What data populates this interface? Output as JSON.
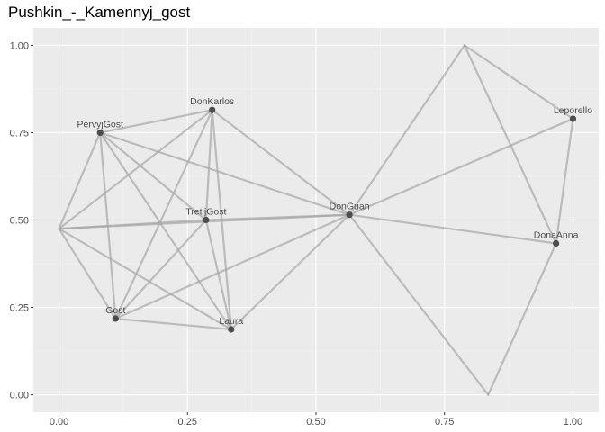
{
  "chart_data": {
    "type": "scatter",
    "title": "Pushkin_-_Kamennyj_gost",
    "xlabel": "",
    "ylabel": "",
    "xlim": [
      -0.05,
      1.05
    ],
    "ylim": [
      -0.05,
      1.05
    ],
    "x_ticks": [
      "0.00",
      "0.25",
      "0.50",
      "0.75",
      "1.00"
    ],
    "y_ticks": [
      "0.00",
      "0.25",
      "0.50",
      "0.75",
      "1.00"
    ],
    "x_tick_values": [
      0,
      0.25,
      0.5,
      0.75,
      1
    ],
    "y_tick_values": [
      0,
      0.25,
      0.5,
      0.75,
      1
    ],
    "grid": true,
    "nodes": [
      {
        "id": "PervyjGost",
        "x": 0.08,
        "y": 0.75,
        "label": "PervyjGost"
      },
      {
        "id": "DonKarlos",
        "x": 0.298,
        "y": 0.815,
        "label": "DonKarlos"
      },
      {
        "id": "TretijGost",
        "x": 0.286,
        "y": 0.5,
        "label": "TretijGost"
      },
      {
        "id": "DonGuan",
        "x": 0.565,
        "y": 0.515,
        "label": "DonGuan"
      },
      {
        "id": "Leporello",
        "x": 1.0,
        "y": 0.79,
        "label": "Leporello"
      },
      {
        "id": "DonaAnna",
        "x": 0.967,
        "y": 0.433,
        "label": "DonaAnna"
      },
      {
        "id": "Gost",
        "x": 0.11,
        "y": 0.218,
        "label": "Gost"
      },
      {
        "id": "Laura",
        "x": 0.335,
        "y": 0.187,
        "label": "Laura"
      },
      {
        "id": "h1",
        "x": 0.0,
        "y": 0.475,
        "label": ""
      },
      {
        "id": "h2",
        "x": 0.789,
        "y": 1.0,
        "label": ""
      },
      {
        "id": "h3",
        "x": 0.835,
        "y": 0.0,
        "label": ""
      }
    ],
    "edges": [
      [
        "h1",
        "PervyjGost"
      ],
      [
        "h1",
        "DonKarlos"
      ],
      [
        "h1",
        "TretijGost"
      ],
      [
        "h1",
        "Gost"
      ],
      [
        "h1",
        "Laura"
      ],
      [
        "h1",
        "DonGuan"
      ],
      [
        "PervyjGost",
        "DonKarlos"
      ],
      [
        "PervyjGost",
        "TretijGost"
      ],
      [
        "PervyjGost",
        "Gost"
      ],
      [
        "PervyjGost",
        "Laura"
      ],
      [
        "PervyjGost",
        "DonGuan"
      ],
      [
        "DonKarlos",
        "TretijGost"
      ],
      [
        "DonKarlos",
        "Gost"
      ],
      [
        "DonKarlos",
        "Laura"
      ],
      [
        "DonKarlos",
        "DonGuan"
      ],
      [
        "TretijGost",
        "Gost"
      ],
      [
        "TretijGost",
        "Laura"
      ],
      [
        "TretijGost",
        "DonGuan"
      ],
      [
        "Gost",
        "Laura"
      ],
      [
        "Gost",
        "DonGuan"
      ],
      [
        "Laura",
        "DonGuan"
      ],
      [
        "DonGuan",
        "Leporello"
      ],
      [
        "DonGuan",
        "h2"
      ],
      [
        "DonGuan",
        "DonaAnna"
      ],
      [
        "DonGuan",
        "h3"
      ],
      [
        "h2",
        "Leporello"
      ],
      [
        "h2",
        "DonaAnna"
      ],
      [
        "Leporello",
        "DonaAnna"
      ],
      [
        "DonaAnna",
        "h3"
      ]
    ],
    "colors": {
      "panel": "#ebebeb",
      "grid_major": "#ffffff",
      "grid_minor": "#f5f5f5",
      "edge": "#a6a6a6",
      "node": "#4d4d4d",
      "label": "#4d4d4d"
    }
  }
}
